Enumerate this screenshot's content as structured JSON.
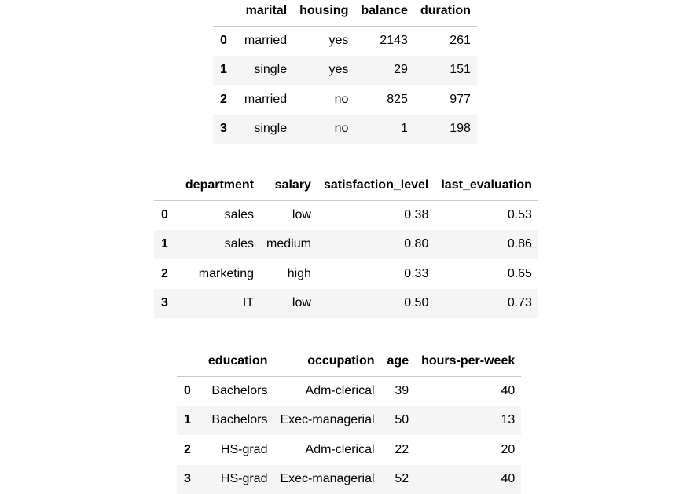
{
  "tables": [
    {
      "columns": [
        "",
        "marital",
        "housing",
        "balance",
        "duration"
      ],
      "rows": [
        {
          "index": "0",
          "cells": [
            "married",
            "yes",
            "2143",
            "261"
          ]
        },
        {
          "index": "1",
          "cells": [
            "single",
            "yes",
            "29",
            "151"
          ]
        },
        {
          "index": "2",
          "cells": [
            "married",
            "no",
            "825",
            "977"
          ]
        },
        {
          "index": "3",
          "cells": [
            "single",
            "no",
            "1",
            "198"
          ]
        }
      ]
    },
    {
      "columns": [
        "",
        "department",
        "salary",
        "satisfaction_level",
        "last_evaluation"
      ],
      "rows": [
        {
          "index": "0",
          "cells": [
            "sales",
            "low",
            "0.38",
            "0.53"
          ]
        },
        {
          "index": "1",
          "cells": [
            "sales",
            "medium",
            "0.80",
            "0.86"
          ]
        },
        {
          "index": "2",
          "cells": [
            "marketing",
            "high",
            "0.33",
            "0.65"
          ]
        },
        {
          "index": "3",
          "cells": [
            "IT",
            "low",
            "0.50",
            "0.73"
          ]
        }
      ]
    },
    {
      "columns": [
        "",
        "education",
        "occupation",
        "age",
        "hours-per-week"
      ],
      "rows": [
        {
          "index": "0",
          "cells": [
            "Bachelors",
            "Adm-clerical",
            "39",
            "40"
          ]
        },
        {
          "index": "1",
          "cells": [
            "Bachelors",
            "Exec-managerial",
            "50",
            "13"
          ]
        },
        {
          "index": "2",
          "cells": [
            "HS-grad",
            "Adm-clerical",
            "22",
            "20"
          ]
        },
        {
          "index": "3",
          "cells": [
            "HS-grad",
            "Exec-managerial",
            "52",
            "40"
          ]
        }
      ]
    }
  ]
}
